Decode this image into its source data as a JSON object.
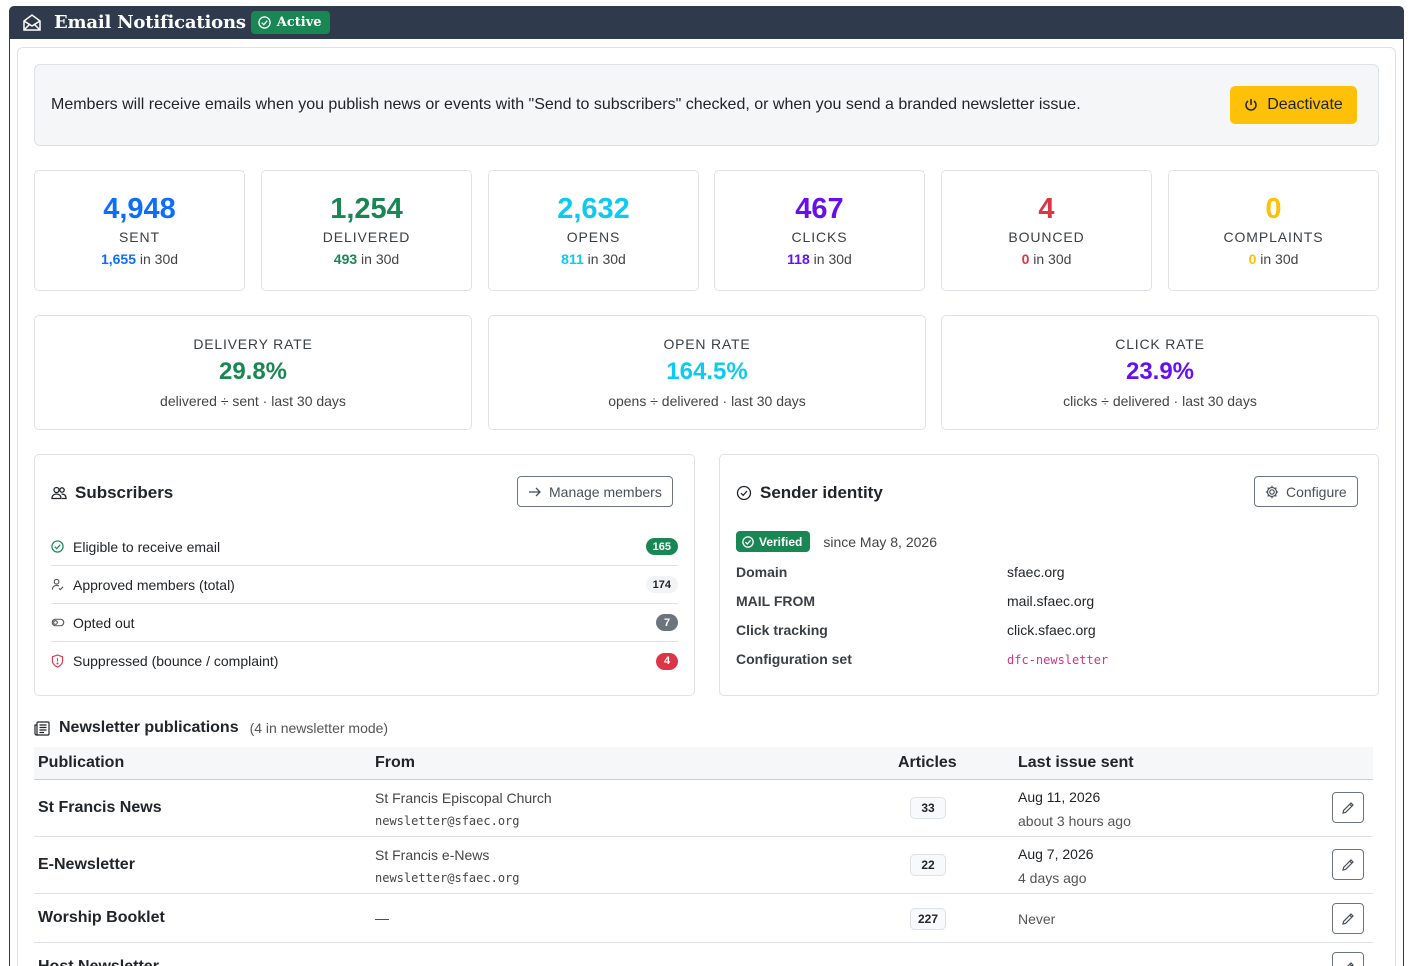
{
  "header": {
    "title": "Email Notifications",
    "status_badge": "Active"
  },
  "alert": {
    "text": "Members will receive emails when you publish news or events with \"Send to subscribers\" checked, or when you send a branded newsletter issue.",
    "button_label": "Deactivate"
  },
  "stats": [
    {
      "value": "4,948",
      "label": "SENT",
      "recent": "1,655",
      "recent_suffix": " in 30d",
      "color": "#0d6efd"
    },
    {
      "value": "1,254",
      "label": "DELIVERED",
      "recent": "493",
      "recent_suffix": " in 30d",
      "color": "#198754"
    },
    {
      "value": "2,632",
      "label": "OPENS",
      "recent": "811",
      "recent_suffix": " in 30d",
      "color": "#0dcaf0"
    },
    {
      "value": "467",
      "label": "CLICKS",
      "recent": "118",
      "recent_suffix": " in 30d",
      "color": "#6610f2"
    },
    {
      "value": "4",
      "label": "BOUNCED",
      "recent": "0",
      "recent_suffix": " in 30d",
      "color": "#dc3545"
    },
    {
      "value": "0",
      "label": "COMPLAINTS",
      "recent": "0",
      "recent_suffix": " in 30d",
      "color": "#ffc107"
    }
  ],
  "rates": [
    {
      "label": "DELIVERY RATE",
      "value": "29.8%",
      "note": "delivered ÷ sent · last 30 days",
      "color": "#198754"
    },
    {
      "label": "OPEN RATE",
      "value": "164.5%",
      "note": "opens ÷ delivered · last 30 days",
      "color": "#0dcaf0"
    },
    {
      "label": "CLICK RATE",
      "value": "23.9%",
      "note": "clicks ÷ delivered · last 30 days",
      "color": "#6610f2"
    }
  ],
  "subscribers": {
    "title": "Subscribers",
    "manage_label": "Manage members",
    "rows": [
      {
        "label": "Eligible to receive email",
        "count": "165",
        "icon": "check-circle-icon"
      },
      {
        "label": "Approved members (total)",
        "count": "174",
        "icon": "person-check-icon"
      },
      {
        "label": "Opted out",
        "count": "7",
        "icon": "toggle-off-icon"
      },
      {
        "label": "Suppressed (bounce / complaint)",
        "count": "4",
        "icon": "shield-exclamation-icon"
      }
    ]
  },
  "sender": {
    "title": "Sender identity",
    "configure_label": "Configure",
    "verified_label": "Verified",
    "since": "since May 8, 2026",
    "fields": [
      {
        "key": "Domain",
        "value": "sfaec.org"
      },
      {
        "key": "MAIL FROM",
        "value": "mail.sfaec.org"
      },
      {
        "key": "Click tracking",
        "value": "click.sfaec.org"
      },
      {
        "key": "Configuration set",
        "value": "dfc-newsletter"
      }
    ]
  },
  "publications": {
    "title": "Newsletter publications",
    "note": "(4 in newsletter mode)",
    "columns": [
      "Publication",
      "From",
      "Articles",
      "Last issue sent"
    ],
    "rows": [
      {
        "name": "St Francis News",
        "from_name": "St Francis Episcopal Church",
        "from_email": "newsletter@sfaec.org",
        "articles": "33",
        "last_sent": "Aug 11, 2026",
        "last_relative": "about 3 hours ago"
      },
      {
        "name": "E-Newsletter",
        "from_name": "St Francis e-News",
        "from_email": "newsletter@sfaec.org",
        "articles": "22",
        "last_sent": "Aug 7, 2026",
        "last_relative": "4 days ago"
      },
      {
        "name": "Worship Booklet",
        "from_name": "—",
        "from_email": "",
        "articles": "227",
        "last_sent": "Never",
        "last_relative": ""
      },
      {
        "name": "Host Newsletter",
        "from_name": "",
        "from_email": "",
        "articles": "",
        "last_sent": "",
        "last_relative": ""
      }
    ]
  }
}
